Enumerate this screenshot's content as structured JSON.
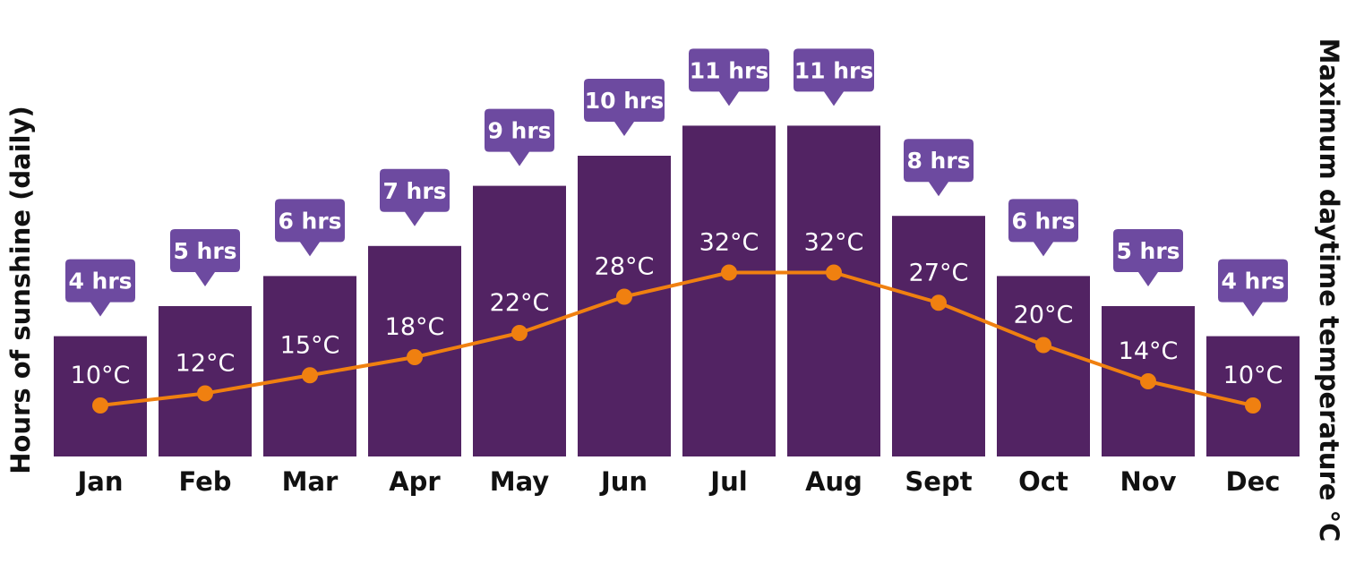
{
  "chart_data": {
    "type": "bar",
    "categories": [
      "Jan",
      "Feb",
      "Mar",
      "Apr",
      "May",
      "Jun",
      "Jul",
      "Aug",
      "Sept",
      "Oct",
      "Nov",
      "Dec"
    ],
    "series": [
      {
        "values": [
          4,
          5,
          6,
          7,
          9,
          10,
          11,
          11,
          8,
          6,
          5,
          4
        ],
        "labels": [
          "4 hrs",
          "5 hrs",
          "6 hrs",
          "7 hrs",
          "9 hrs",
          "10 hrs",
          "11 hrs",
          "11 hrs",
          "8 hrs",
          "6 hrs",
          "5 hrs",
          "4 hrs"
        ],
        "type": "bar",
        "axis": "left"
      },
      {
        "values": [
          10,
          12,
          15,
          18,
          22,
          28,
          32,
          32,
          27,
          20,
          14,
          10
        ],
        "labels": [
          "10°C",
          "12°C",
          "15°C",
          "18°C",
          "22°C",
          "28°C",
          "32°C",
          "32°C",
          "27°C",
          "20°C",
          "14°C",
          "10°C"
        ],
        "type": "line",
        "axis": "right"
      }
    ],
    "ylabel": "Hours of sunshine (daily)",
    "y2label": "Maximum daytime temperature °C",
    "xlabel": "",
    "title": "",
    "grid": false,
    "legend": "none"
  },
  "colors": {
    "bar": "#522363",
    "callout": "#6d4aa0",
    "line": "#f08010",
    "text": "#111111",
    "label_text": "#ffffff"
  }
}
